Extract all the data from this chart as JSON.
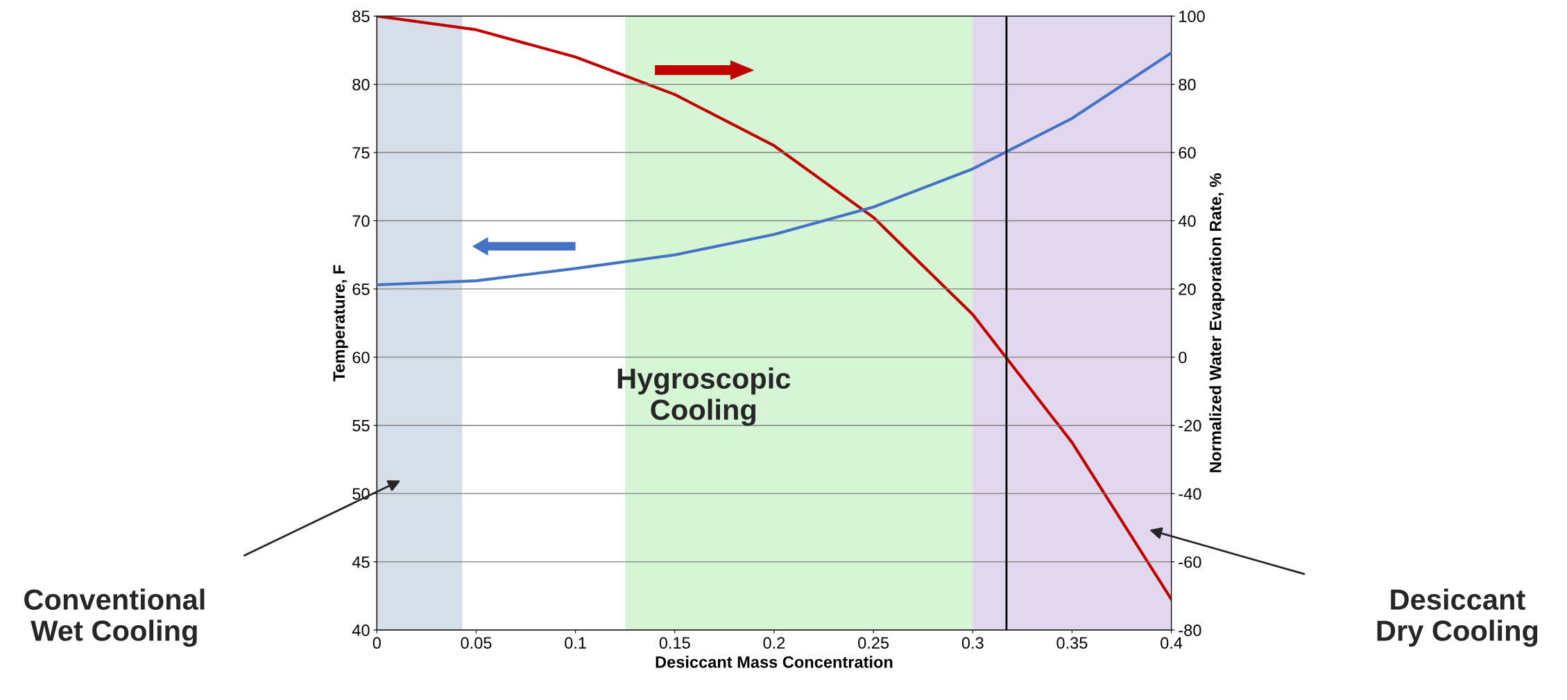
{
  "chart_data": {
    "type": "line",
    "xlabel": "Desiccant Mass Concentration",
    "ylabel": "Temperature, F",
    "y2label": "Normalized Water Evaporation Rate, %",
    "x": [
      0,
      0.05,
      0.1,
      0.15,
      0.2,
      0.25,
      0.3,
      0.35,
      0.4
    ],
    "series": [
      {
        "color": "#4472c4",
        "values": [
          65.3,
          65.6,
          66.5,
          67.5,
          69,
          71,
          73.8,
          77.5,
          82.3
        ]
      },
      {
        "color": "#c00000",
        "axis": "y2",
        "values": [
          100,
          96,
          88,
          77,
          62,
          41,
          12.5,
          -25,
          -71
        ]
      }
    ],
    "xlim": [
      0,
      0.4
    ],
    "xticks": [
      0,
      0.05,
      0.1,
      0.15,
      0.2,
      0.25,
      0.3,
      0.35,
      0.4
    ],
    "ylim": [
      40,
      85
    ],
    "yticks": [
      40,
      45,
      50,
      55,
      60,
      65,
      70,
      75,
      80,
      85
    ],
    "y2lim": [
      -80,
      100
    ],
    "y2ticks": [
      -80,
      -60,
      -40,
      -20,
      0,
      20,
      40,
      60,
      80,
      100
    ],
    "grid": "y",
    "legend": false,
    "ref_lines": [
      {
        "axis": "x",
        "value": 0.317,
        "color": "#000000"
      }
    ],
    "bands": [
      {
        "axis": "x",
        "from": 0,
        "to": 0.043,
        "color": "#d6dfe8"
      },
      {
        "axis": "x",
        "from": 0.125,
        "to": 0.3,
        "label": "Hygroscopic\nCooling",
        "color": "#d5f5d5"
      },
      {
        "axis": "x",
        "from": 0.3,
        "to": 0.4,
        "color": "#e3d7ed"
      }
    ],
    "annotations": [
      "Conventional\nWet Cooling",
      "Desiccant\nDry Cooling"
    ]
  }
}
